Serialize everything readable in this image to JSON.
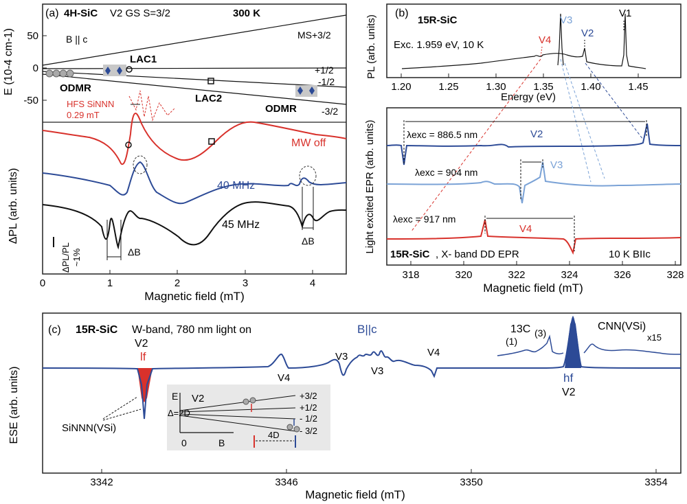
{
  "panel_a": {
    "label": "(a)",
    "title_bold": "4H-SiC",
    "title_rest": "V2 GS S=3/2",
    "temp": "300 K",
    "field_orientation": "B || c",
    "ylabel_top": "E (10-4 cm-1)",
    "ylabel_bottom": "ΔPL (arb. units)",
    "xlabel": "Magnetic field (mT)",
    "y_ticks": [
      "50",
      "0",
      "-50"
    ],
    "x_ticks": [
      "0",
      "1",
      "2",
      "3",
      "4"
    ],
    "lac1": "LAC1",
    "lac2": "LAC2",
    "odmr_left": "ODMR",
    "odmr_right": "ODMR",
    "ms_label": "MS+3/2",
    "ms_p12": "+1/2",
    "ms_m12": "-1/2",
    "ms_m32": "-3/2",
    "hfs_line1": "HFS SiNNN",
    "hfs_line2": "0.29 mT",
    "mw_off": "MW off",
    "f40": "40 MHz",
    "f45": "45 MHz",
    "delta_b_1": "ΔB",
    "delta_b_2": "ΔB",
    "scale_label": "ΔPL/PL",
    "scale_value": "~1%"
  },
  "panel_b": {
    "label": "(b)",
    "title": "15R-SiC",
    "excitation": "Exc. 1.959 eV, 10 K",
    "ylabel": "PL (arb. units)",
    "xlabel": "Energy (eV)",
    "x_ticks": [
      "1.20",
      "1.25",
      "1.30",
      "1.35",
      "1.40",
      "1.45"
    ],
    "peaks": [
      "V4",
      "V3",
      "V2",
      "V1"
    ]
  },
  "panel_epr": {
    "ylabel": "Light excited EPR (arb. units)",
    "xlabel": "Magnetic field (mT)",
    "x_ticks": [
      "318",
      "320",
      "322",
      "324",
      "326",
      "328"
    ],
    "trace_v2": "λexc = 886.5 nm",
    "trace_v3": "λexc = 904 nm",
    "trace_v4": "λexc = 917 nm",
    "label_v2": "V2",
    "label_v3": "V3",
    "label_v4": "V4",
    "footer_bold": "15R-SiC",
    "footer_rest": ", X- band DD EPR",
    "footer_cond": "10 K  BIIc"
  },
  "panel_c": {
    "label": "(c)",
    "title_bold": "15R-SiC",
    "title_rest": "W-band,  780 nm light on",
    "orientation": "B||c",
    "ylabel": "ESE (arb. units)",
    "xlabel": "Magnetic field (mT)",
    "x_ticks": [
      "3342",
      "3346",
      "3350",
      "3354"
    ],
    "v2_left": "V2",
    "lf": "lf",
    "hf": "hf",
    "v2_right": "V2",
    "v4_a": "V4",
    "v3_a": "V3",
    "v3_b": "V3",
    "v4_b": "V4",
    "c13": "13C",
    "c13_1": "(1)",
    "c13_3": "(3)",
    "cnn": "CNN(VSi)",
    "x15": "x15",
    "sinnn": "SiNNN(VSi)",
    "inset": {
      "e": "E",
      "v2": "V2",
      "delta": "Δ=2D",
      "zero": "0",
      "b": "B",
      "four_d": "4D",
      "levels": [
        "+3/2",
        "+1/2",
        "- 1/2",
        "- 3/2"
      ]
    }
  },
  "colors": {
    "red": "#d8312b",
    "blue": "#2c4a96",
    "light_blue": "#7aa2d6",
    "black": "#111111"
  }
}
